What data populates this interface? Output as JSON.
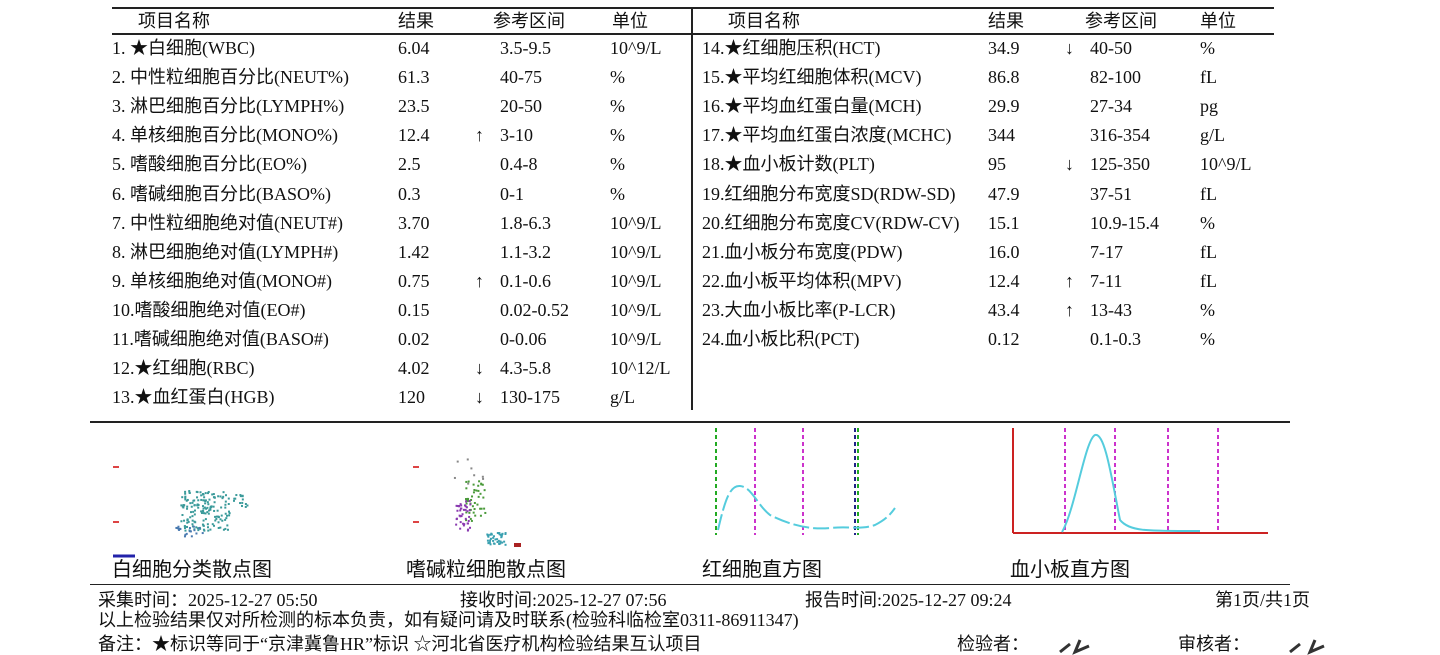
{
  "columns": [
    "项目名称",
    "结果",
    "参考区间",
    "单位"
  ],
  "left_rows": [
    {
      "name": "1. ★白细胞(WBC)",
      "result": "6.04",
      "range": "3.5-9.5",
      "unit": "10^9/L"
    },
    {
      "name": "2. 中性粒细胞百分比(NEUT%)",
      "result": "61.3",
      "range": "40-75",
      "unit": "%"
    },
    {
      "name": "3. 淋巴细胞百分比(LYMPH%)",
      "result": "23.5",
      "range": "20-50",
      "unit": "%"
    },
    {
      "name": "4. 单核细胞百分比(MONO%)",
      "result": "12.4",
      "flag": "↑",
      "range": "3-10",
      "unit": "%"
    },
    {
      "name": "5. 嗜酸细胞百分比(EO%)",
      "result": "2.5",
      "range": "0.4-8",
      "unit": "%"
    },
    {
      "name": "6. 嗜碱细胞百分比(BASO%)",
      "result": "0.3",
      "range": "0-1",
      "unit": "%"
    },
    {
      "name": "7. 中性粒细胞绝对值(NEUT#)",
      "result": "3.70",
      "range": "1.8-6.3",
      "unit": "10^9/L"
    },
    {
      "name": "8. 淋巴细胞绝对值(LYMPH#)",
      "result": "1.42",
      "range": "1.1-3.2",
      "unit": "10^9/L"
    },
    {
      "name": "9. 单核细胞绝对值(MONO#)",
      "result": "0.75",
      "flag": "↑",
      "range": "0.1-0.6",
      "unit": "10^9/L"
    },
    {
      "name": "10.嗜酸细胞绝对值(EO#)",
      "result": "0.15",
      "range": "0.02-0.52",
      "unit": "10^9/L"
    },
    {
      "name": "11.嗜碱细胞绝对值(BASO#)",
      "result": "0.02",
      "range": "0-0.06",
      "unit": "10^9/L"
    },
    {
      "name": "12.★红细胞(RBC)",
      "result": "4.02",
      "flag": "↓",
      "range": "4.3-5.8",
      "unit": "10^12/L"
    },
    {
      "name": "13.★血红蛋白(HGB)",
      "result": "120",
      "flag": "↓",
      "range": "130-175",
      "unit": "g/L"
    }
  ],
  "right_rows": [
    {
      "name": "14.★红细胞压积(HCT)",
      "result": "34.9",
      "flag": "↓",
      "range": "40-50",
      "unit": "%"
    },
    {
      "name": "15.★平均红细胞体积(MCV)",
      "result": "86.8",
      "range": "82-100",
      "unit": "fL"
    },
    {
      "name": "16.★平均血红蛋白量(MCH)",
      "result": "29.9",
      "range": "27-34",
      "unit": "pg"
    },
    {
      "name": "17.★平均血红蛋白浓度(MCHC)",
      "result": "344",
      "range": "316-354",
      "unit": "g/L"
    },
    {
      "name": "18.★血小板计数(PLT)",
      "result": "95",
      "flag": "↓",
      "range": "125-350",
      "unit": "10^9/L"
    },
    {
      "name": "19.红细胞分布宽度SD(RDW-SD)",
      "result": "47.9",
      "range": "37-51",
      "unit": "fL"
    },
    {
      "name": "20.红细胞分布宽度CV(RDW-CV)",
      "result": "15.1",
      "range": "10.9-15.4",
      "unit": "%"
    },
    {
      "name": "21.血小板分布宽度(PDW)",
      "result": "16.0",
      "range": "7-17",
      "unit": "fL"
    },
    {
      "name": "22.血小板平均体积(MPV)",
      "result": "12.4",
      "flag": "↑",
      "range": "7-11",
      "unit": "fL"
    },
    {
      "name": "23.大血小板比率(P-LCR)",
      "result": "43.4",
      "flag": "↑",
      "range": "13-43",
      "unit": "%"
    },
    {
      "name": "24.血小板比积(PCT)",
      "result": "0.12",
      "range": "0.1-0.3",
      "unit": "%"
    }
  ],
  "plots": [
    "白细胞分类散点图",
    "嗜碱粒细胞散点图",
    "红细胞直方图",
    "血小板直方图"
  ],
  "footer": {
    "collect": "采集时间：2025-12-27 05:50",
    "receive": "接收时间:2025-12-27  07:56",
    "report": "报告时间:2025-12-27  09:24",
    "page": "第1页/共1页",
    "disclaimer": "以上检验结果仅对所检测的标本负责，如有疑问请及时联系(检验科临检室0311-86911347)",
    "note": "备注：★标识等同于“京津冀鲁HR”标识  ☆河北省医疗机构检验结果互认项目",
    "tester": "检验者：",
    "reviewer": "审核者："
  }
}
